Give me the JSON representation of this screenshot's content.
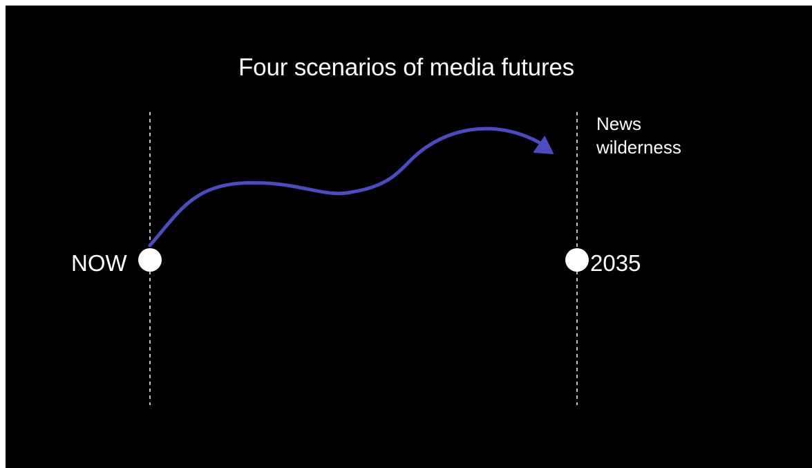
{
  "title": "Four scenarios of media futures",
  "start_label": "NOW",
  "end_label": "2035",
  "scenario": {
    "line1": "News",
    "line2": "wilderness"
  },
  "colors": {
    "background": "#000000",
    "text": "#ffffff",
    "path": "#4b4bc2",
    "marker": "#ffffff",
    "guide": "#ffffff"
  }
}
